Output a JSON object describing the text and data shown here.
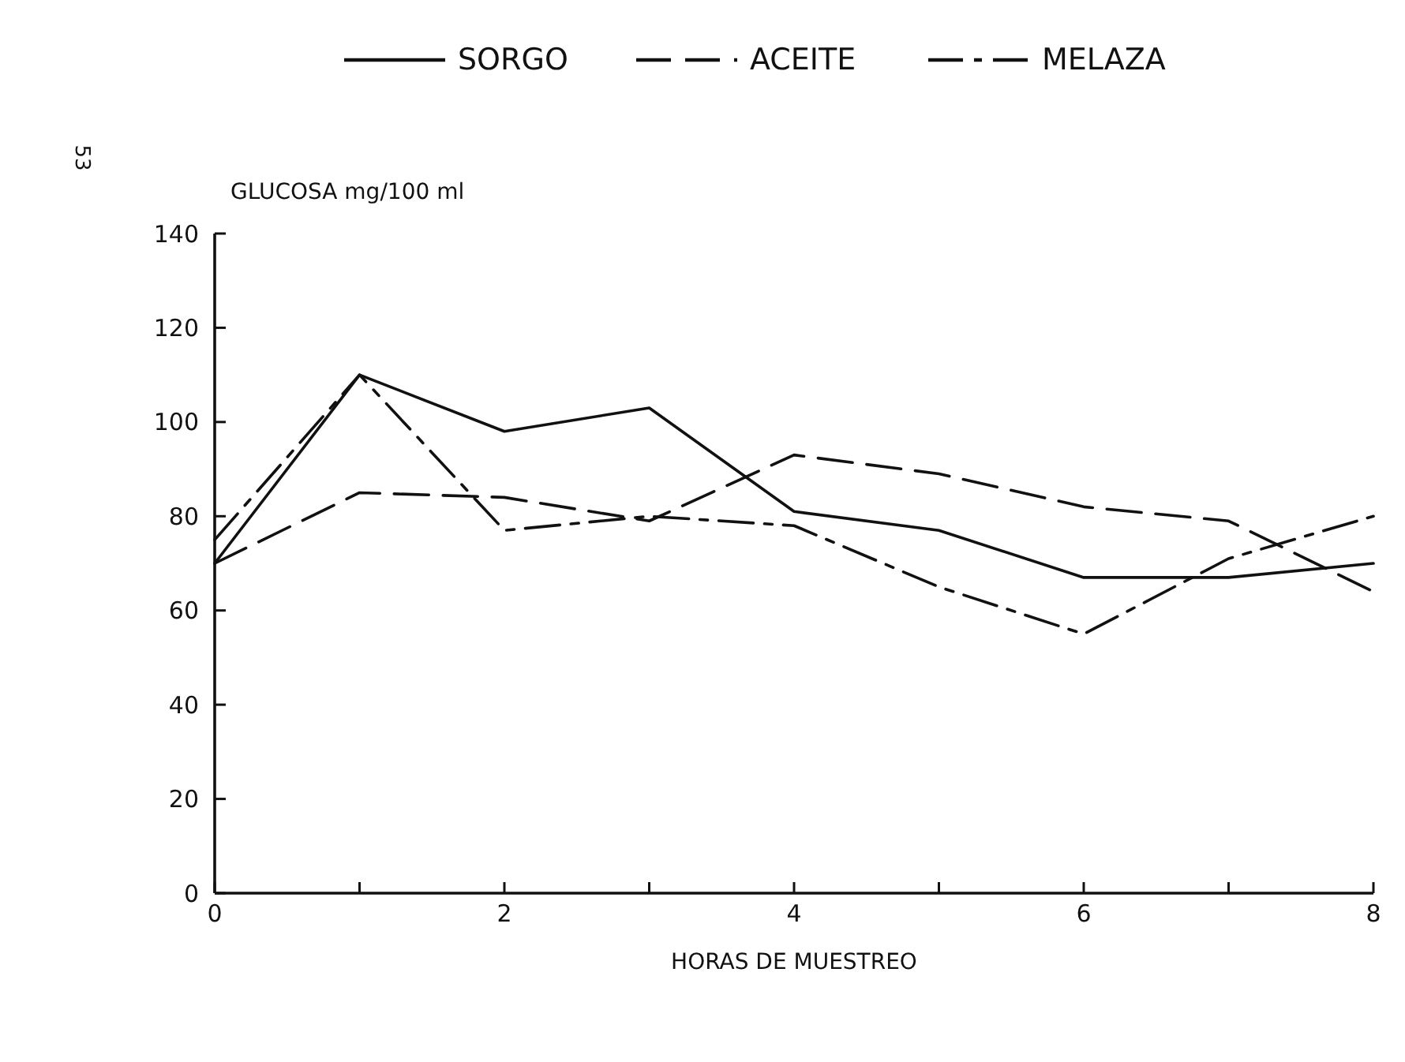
{
  "chart_data": {
    "type": "line",
    "ylabel": "GLUCOSA mg/100 ml",
    "xlabel": "HORAS DE MUESTREO",
    "annotations": [
      "53"
    ],
    "x": [
      0,
      1,
      2,
      3,
      4,
      5,
      6,
      7,
      8
    ],
    "xlim": [
      0,
      8
    ],
    "xticks": [
      0,
      {
        "value": 1,
        "label": null
      },
      2,
      {
        "value": 3,
        "label": null
      },
      4,
      {
        "value": 5,
        "label": null
      },
      6,
      {
        "value": 7,
        "label": null
      },
      8
    ],
    "ylim": [
      0,
      140
    ],
    "yticks": [
      0,
      20,
      40,
      60,
      80,
      100,
      120,
      140
    ],
    "legend": "top",
    "grid": false,
    "marker": "none",
    "series": [
      {
        "name": "SORGO",
        "color": "#111111",
        "line_style": "solid",
        "values": [
          70,
          110,
          98,
          103,
          81,
          77,
          67,
          67,
          70
        ]
      },
      {
        "name": "ACEITE",
        "color": "#111111",
        "line_style": "dashed",
        "values": [
          70,
          85,
          84,
          79,
          93,
          89,
          82,
          79,
          64
        ]
      },
      {
        "name": "MELAZA",
        "color": "#111111",
        "line_style": "dashdot",
        "values": [
          75,
          110,
          77,
          80,
          78,
          65,
          55,
          71,
          80
        ]
      }
    ]
  }
}
